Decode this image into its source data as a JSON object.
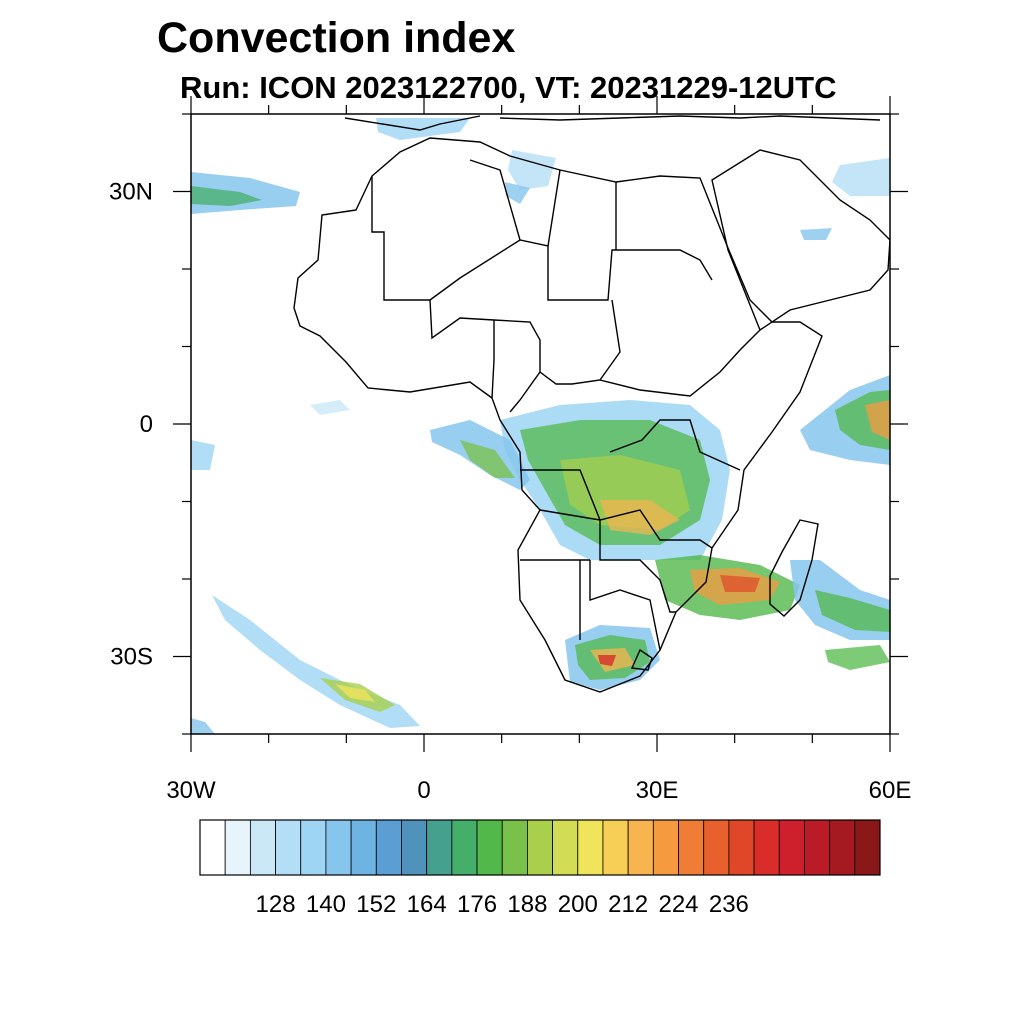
{
  "title": "Convection index",
  "subtitle": "Run: ICON 2023122700,  VT: 20231229-12UTC",
  "map": {
    "lon_range": [
      -30,
      60
    ],
    "lat_range": [
      -40,
      40
    ],
    "lat_ticks": [
      {
        "value": 30,
        "label": "30N"
      },
      {
        "value": 0,
        "label": "0"
      },
      {
        "value": -30,
        "label": "30S"
      }
    ],
    "lon_ticks": [
      {
        "value": -30,
        "label": "30W"
      },
      {
        "value": 0,
        "label": "0"
      },
      {
        "value": 30,
        "label": "30E"
      },
      {
        "value": 60,
        "label": "60E"
      }
    ]
  },
  "colorbar": {
    "colors": [
      "#ffffff",
      "#e8f4fb",
      "#cbe8f7",
      "#b4def5",
      "#9ed5f4",
      "#86c6ec",
      "#6eb4e2",
      "#5a9ed3",
      "#4f93bd",
      "#46a08e",
      "#45ae6a",
      "#52b84a",
      "#79c14a",
      "#a9cf4c",
      "#d2dc55",
      "#f0e45a",
      "#f7cf56",
      "#f8b44e",
      "#f69a40",
      "#f07d36",
      "#e8602d",
      "#e04728",
      "#d82d29",
      "#cd1f2c",
      "#bb1b27",
      "#a41a20",
      "#8a1818"
    ],
    "labels": [
      "128",
      "140",
      "152",
      "164",
      "176",
      "188",
      "200",
      "212",
      "224",
      "236"
    ]
  },
  "colors": {
    "text": "#000000",
    "border": "#000000"
  }
}
